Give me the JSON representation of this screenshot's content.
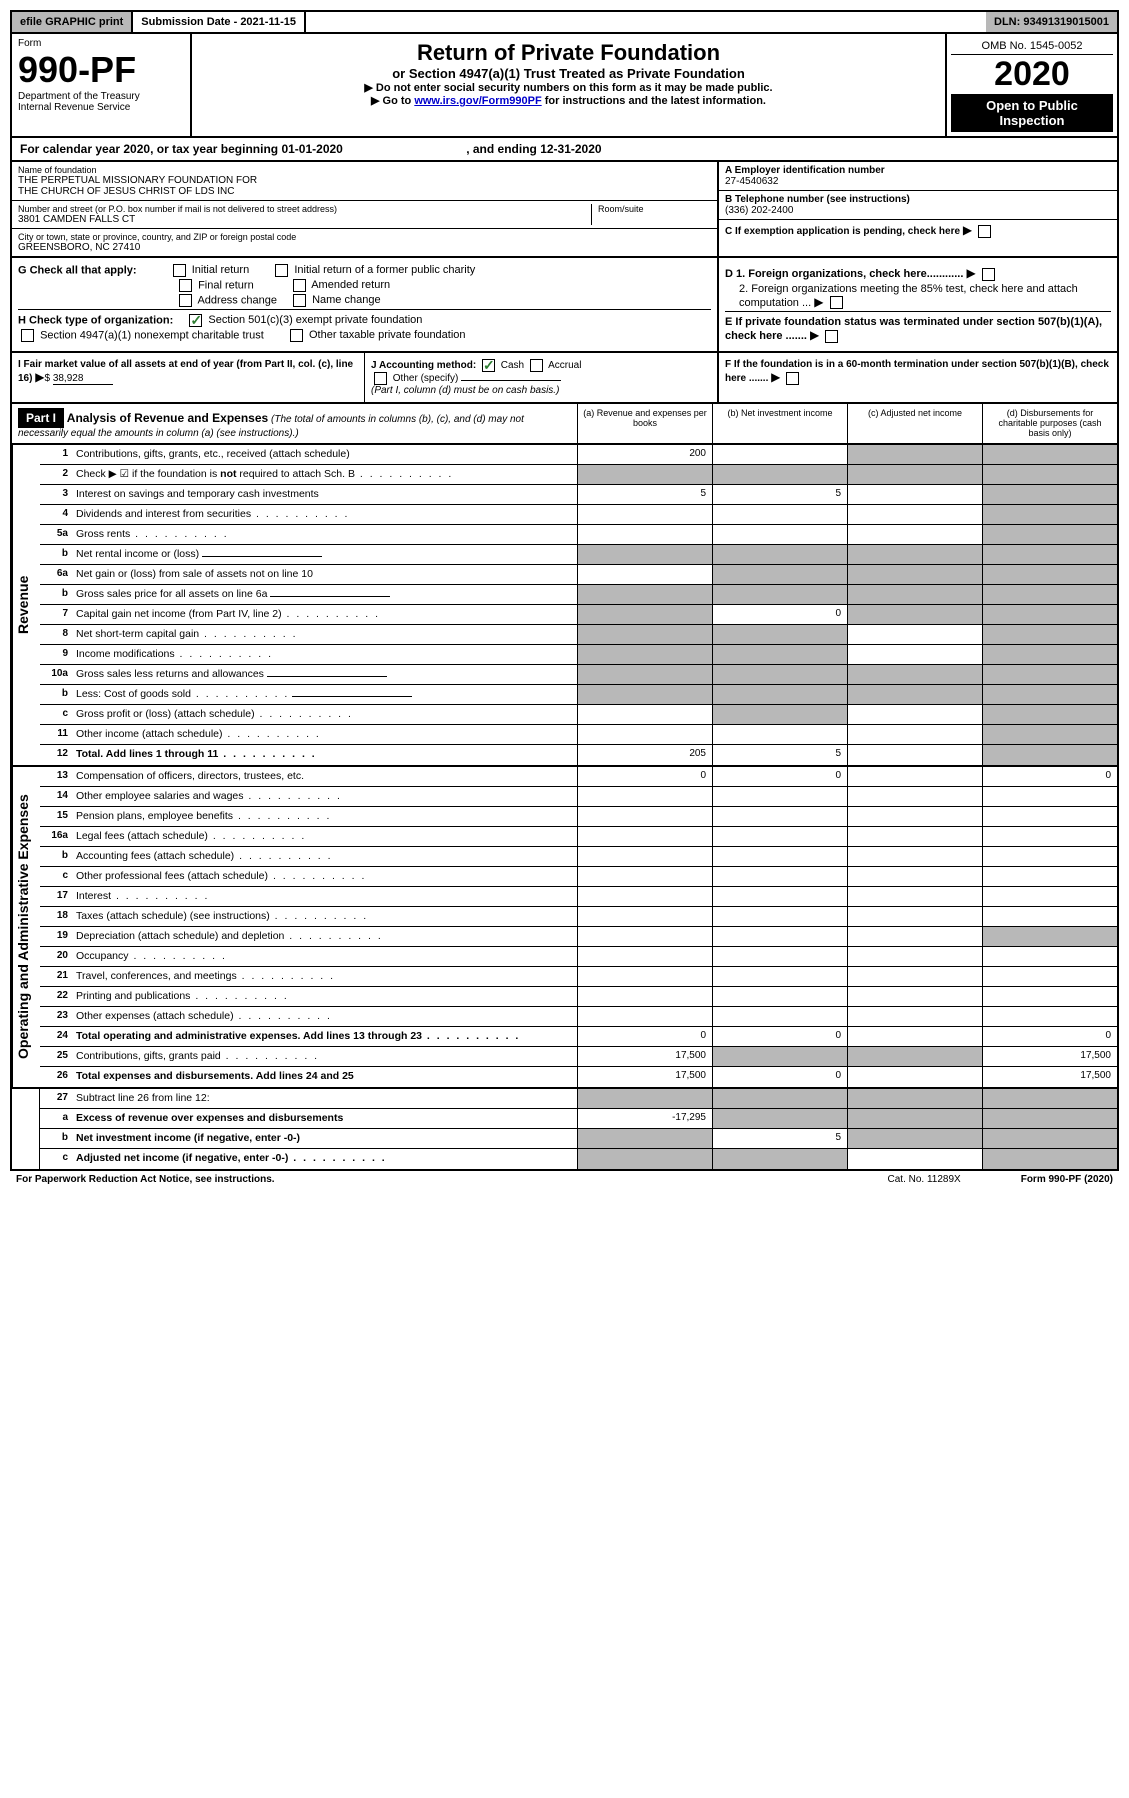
{
  "topbar": {
    "efile": "efile GRAPHIC print",
    "submission_label": "Submission Date - 2021-11-15",
    "dln": "DLN: 93491319015001"
  },
  "header": {
    "form_label": "Form",
    "form_num": "990-PF",
    "dept": "Department of the Treasury",
    "irs": "Internal Revenue Service",
    "title": "Return of Private Foundation",
    "subtitle": "or Section 4947(a)(1) Trust Treated as Private Foundation",
    "note1": "▶ Do not enter social security numbers on this form as it may be made public.",
    "note2_pre": "▶ Go to ",
    "note2_link": "www.irs.gov/Form990PF",
    "note2_post": " for instructions and the latest information.",
    "omb": "OMB No. 1545-0052",
    "year": "2020",
    "open": "Open to Public Inspection"
  },
  "calyear": {
    "text_pre": "For calendar year 2020, or tax year beginning ",
    "begin": "01-01-2020",
    "text_mid": " , and ending ",
    "end": "12-31-2020"
  },
  "info": {
    "name_lbl": "Name of foundation",
    "name1": "THE PERPETUAL MISSIONARY FOUNDATION FOR",
    "name2": "THE CHURCH OF JESUS CHRIST OF LDS INC",
    "addr_lbl": "Number and street (or P.O. box number if mail is not delivered to street address)",
    "room_lbl": "Room/suite",
    "addr": "3801 CAMDEN FALLS CT",
    "city_lbl": "City or town, state or province, country, and ZIP or foreign postal code",
    "city": "GREENSBORO, NC  27410",
    "a_lbl": "A Employer identification number",
    "a_val": "27-4540632",
    "b_lbl": "B Telephone number (see instructions)",
    "b_val": "(336) 202-2400",
    "c_lbl": "C If exemption application is pending, check here"
  },
  "checksG": {
    "label": "G Check all that apply:",
    "opts": [
      "Initial return",
      "Initial return of a former public charity",
      "Final return",
      "Amended return",
      "Address change",
      "Name change"
    ]
  },
  "checksH": {
    "label": "H Check type of organization:",
    "opt1": "Section 501(c)(3) exempt private foundation",
    "opt2": "Section 4947(a)(1) nonexempt charitable trust",
    "opt3": "Other taxable private foundation"
  },
  "checksD": {
    "d1": "D 1. Foreign organizations, check here............",
    "d2": "2. Foreign organizations meeting the 85% test, check here and attach computation ...",
    "e": "E  If private foundation status was terminated under section 507(b)(1)(A), check here .......",
    "f": "F  If the foundation is in a 60-month termination under section 507(b)(1)(B), check here ......."
  },
  "sectionI": {
    "i_label": "I Fair market value of all assets at end of year (from Part II, col. (c), line 16)",
    "i_val": "38,928",
    "j_label": "J Accounting method:",
    "j_cash": "Cash",
    "j_accrual": "Accrual",
    "j_other": "Other (specify)",
    "j_note": "(Part I, column (d) must be on cash basis.)"
  },
  "part1": {
    "label": "Part I",
    "title": "Analysis of Revenue and Expenses",
    "note": "(The total of amounts in columns (b), (c), and (d) may not necessarily equal the amounts in column (a) (see instructions).)",
    "col_a": "(a)   Revenue and expenses per books",
    "col_b": "(b)   Net investment income",
    "col_c": "(c)   Adjusted net income",
    "col_d": "(d)  Disbursements for charitable purposes (cash basis only)"
  },
  "side_labels": {
    "revenue": "Revenue",
    "expenses": "Operating and Administrative Expenses"
  },
  "rows": [
    {
      "n": "1",
      "lbl": "Contributions, gifts, grants, etc., received (attach schedule)",
      "a": "200",
      "b": "",
      "c": "g",
      "d": "g"
    },
    {
      "n": "2",
      "lbl": "Check ▶ ☑ if the foundation is not required to attach Sch. B",
      "dots": true,
      "a": "g",
      "b": "g",
      "c": "g",
      "d": "g",
      "bold_not": true
    },
    {
      "n": "3",
      "lbl": "Interest on savings and temporary cash investments",
      "a": "5",
      "b": "5",
      "c": "",
      "d": "g"
    },
    {
      "n": "4",
      "lbl": "Dividends and interest from securities",
      "dots": true,
      "a": "",
      "b": "",
      "c": "",
      "d": "g"
    },
    {
      "n": "5a",
      "lbl": "Gross rents",
      "dots": true,
      "a": "",
      "b": "",
      "c": "",
      "d": "g"
    },
    {
      "n": "b",
      "lbl": "Net rental income or (loss)",
      "uline": true,
      "a": "g",
      "b": "g",
      "c": "g",
      "d": "g"
    },
    {
      "n": "6a",
      "lbl": "Net gain or (loss) from sale of assets not on line 10",
      "a": "",
      "b": "g",
      "c": "g",
      "d": "g"
    },
    {
      "n": "b",
      "lbl": "Gross sales price for all assets on line 6a",
      "uline": true,
      "a": "g",
      "b": "g",
      "c": "g",
      "d": "g"
    },
    {
      "n": "7",
      "lbl": "Capital gain net income (from Part IV, line 2)",
      "dots": true,
      "a": "g",
      "b": "0",
      "c": "g",
      "d": "g"
    },
    {
      "n": "8",
      "lbl": "Net short-term capital gain",
      "dots": true,
      "a": "g",
      "b": "g",
      "c": "",
      "d": "g"
    },
    {
      "n": "9",
      "lbl": "Income modifications",
      "dots": true,
      "a": "g",
      "b": "g",
      "c": "",
      "d": "g"
    },
    {
      "n": "10a",
      "lbl": "Gross sales less returns and allowances",
      "uline": true,
      "a": "g",
      "b": "g",
      "c": "g",
      "d": "g"
    },
    {
      "n": "b",
      "lbl": "Less: Cost of goods sold",
      "dots": true,
      "uline": true,
      "a": "g",
      "b": "g",
      "c": "g",
      "d": "g"
    },
    {
      "n": "c",
      "lbl": "Gross profit or (loss) (attach schedule)",
      "dots": true,
      "a": "",
      "b": "g",
      "c": "",
      "d": "g"
    },
    {
      "n": "11",
      "lbl": "Other income (attach schedule)",
      "dots": true,
      "a": "",
      "b": "",
      "c": "",
      "d": "g"
    },
    {
      "n": "12",
      "lbl": "Total. Add lines 1 through 11",
      "dots": true,
      "bold": true,
      "a": "205",
      "b": "5",
      "c": "",
      "d": "g"
    }
  ],
  "exp_rows": [
    {
      "n": "13",
      "lbl": "Compensation of officers, directors, trustees, etc.",
      "a": "0",
      "b": "0",
      "c": "",
      "d": "0"
    },
    {
      "n": "14",
      "lbl": "Other employee salaries and wages",
      "dots": true,
      "a": "",
      "b": "",
      "c": "",
      "d": ""
    },
    {
      "n": "15",
      "lbl": "Pension plans, employee benefits",
      "dots": true,
      "a": "",
      "b": "",
      "c": "",
      "d": ""
    },
    {
      "n": "16a",
      "lbl": "Legal fees (attach schedule)",
      "dots": true,
      "a": "",
      "b": "",
      "c": "",
      "d": ""
    },
    {
      "n": "b",
      "lbl": "Accounting fees (attach schedule)",
      "dots": true,
      "a": "",
      "b": "",
      "c": "",
      "d": ""
    },
    {
      "n": "c",
      "lbl": "Other professional fees (attach schedule)",
      "dots": true,
      "a": "",
      "b": "",
      "c": "",
      "d": ""
    },
    {
      "n": "17",
      "lbl": "Interest",
      "dots": true,
      "a": "",
      "b": "",
      "c": "",
      "d": ""
    },
    {
      "n": "18",
      "lbl": "Taxes (attach schedule) (see instructions)",
      "dots": true,
      "a": "",
      "b": "",
      "c": "",
      "d": ""
    },
    {
      "n": "19",
      "lbl": "Depreciation (attach schedule) and depletion",
      "dots": true,
      "a": "",
      "b": "",
      "c": "",
      "d": "g"
    },
    {
      "n": "20",
      "lbl": "Occupancy",
      "dots": true,
      "a": "",
      "b": "",
      "c": "",
      "d": ""
    },
    {
      "n": "21",
      "lbl": "Travel, conferences, and meetings",
      "dots": true,
      "a": "",
      "b": "",
      "c": "",
      "d": ""
    },
    {
      "n": "22",
      "lbl": "Printing and publications",
      "dots": true,
      "a": "",
      "b": "",
      "c": "",
      "d": ""
    },
    {
      "n": "23",
      "lbl": "Other expenses (attach schedule)",
      "dots": true,
      "a": "",
      "b": "",
      "c": "",
      "d": ""
    },
    {
      "n": "24",
      "lbl": "Total operating and administrative expenses. Add lines 13 through 23",
      "dots": true,
      "bold": true,
      "a": "0",
      "b": "0",
      "c": "",
      "d": "0"
    },
    {
      "n": "25",
      "lbl": "Contributions, gifts, grants paid",
      "dots": true,
      "a": "17,500",
      "b": "g",
      "c": "g",
      "d": "17,500"
    },
    {
      "n": "26",
      "lbl": "Total expenses and disbursements. Add lines 24 and 25",
      "bold": true,
      "a": "17,500",
      "b": "0",
      "c": "",
      "d": "17,500"
    }
  ],
  "net_rows": [
    {
      "n": "27",
      "lbl": "Subtract line 26 from line 12:",
      "a": "g",
      "b": "g",
      "c": "g",
      "d": "g"
    },
    {
      "n": "a",
      "lbl": "Excess of revenue over expenses and disbursements",
      "bold": true,
      "a": "-17,295",
      "b": "g",
      "c": "g",
      "d": "g"
    },
    {
      "n": "b",
      "lbl": "Net investment income (if negative, enter -0-)",
      "bold": true,
      "a": "g",
      "b": "5",
      "c": "g",
      "d": "g"
    },
    {
      "n": "c",
      "lbl": "Adjusted net income (if negative, enter -0-)",
      "bold": true,
      "dots": true,
      "a": "g",
      "b": "g",
      "c": "",
      "d": "g"
    }
  ],
  "footer": {
    "left": "For Paperwork Reduction Act Notice, see instructions.",
    "mid": "Cat. No. 11289X",
    "right": "Form 990-PF (2020)"
  },
  "colors": {
    "grey": "#b8b8b8",
    "green_check": "#2e7d32",
    "link": "#0000cc",
    "black": "#000000",
    "white": "#ffffff"
  }
}
